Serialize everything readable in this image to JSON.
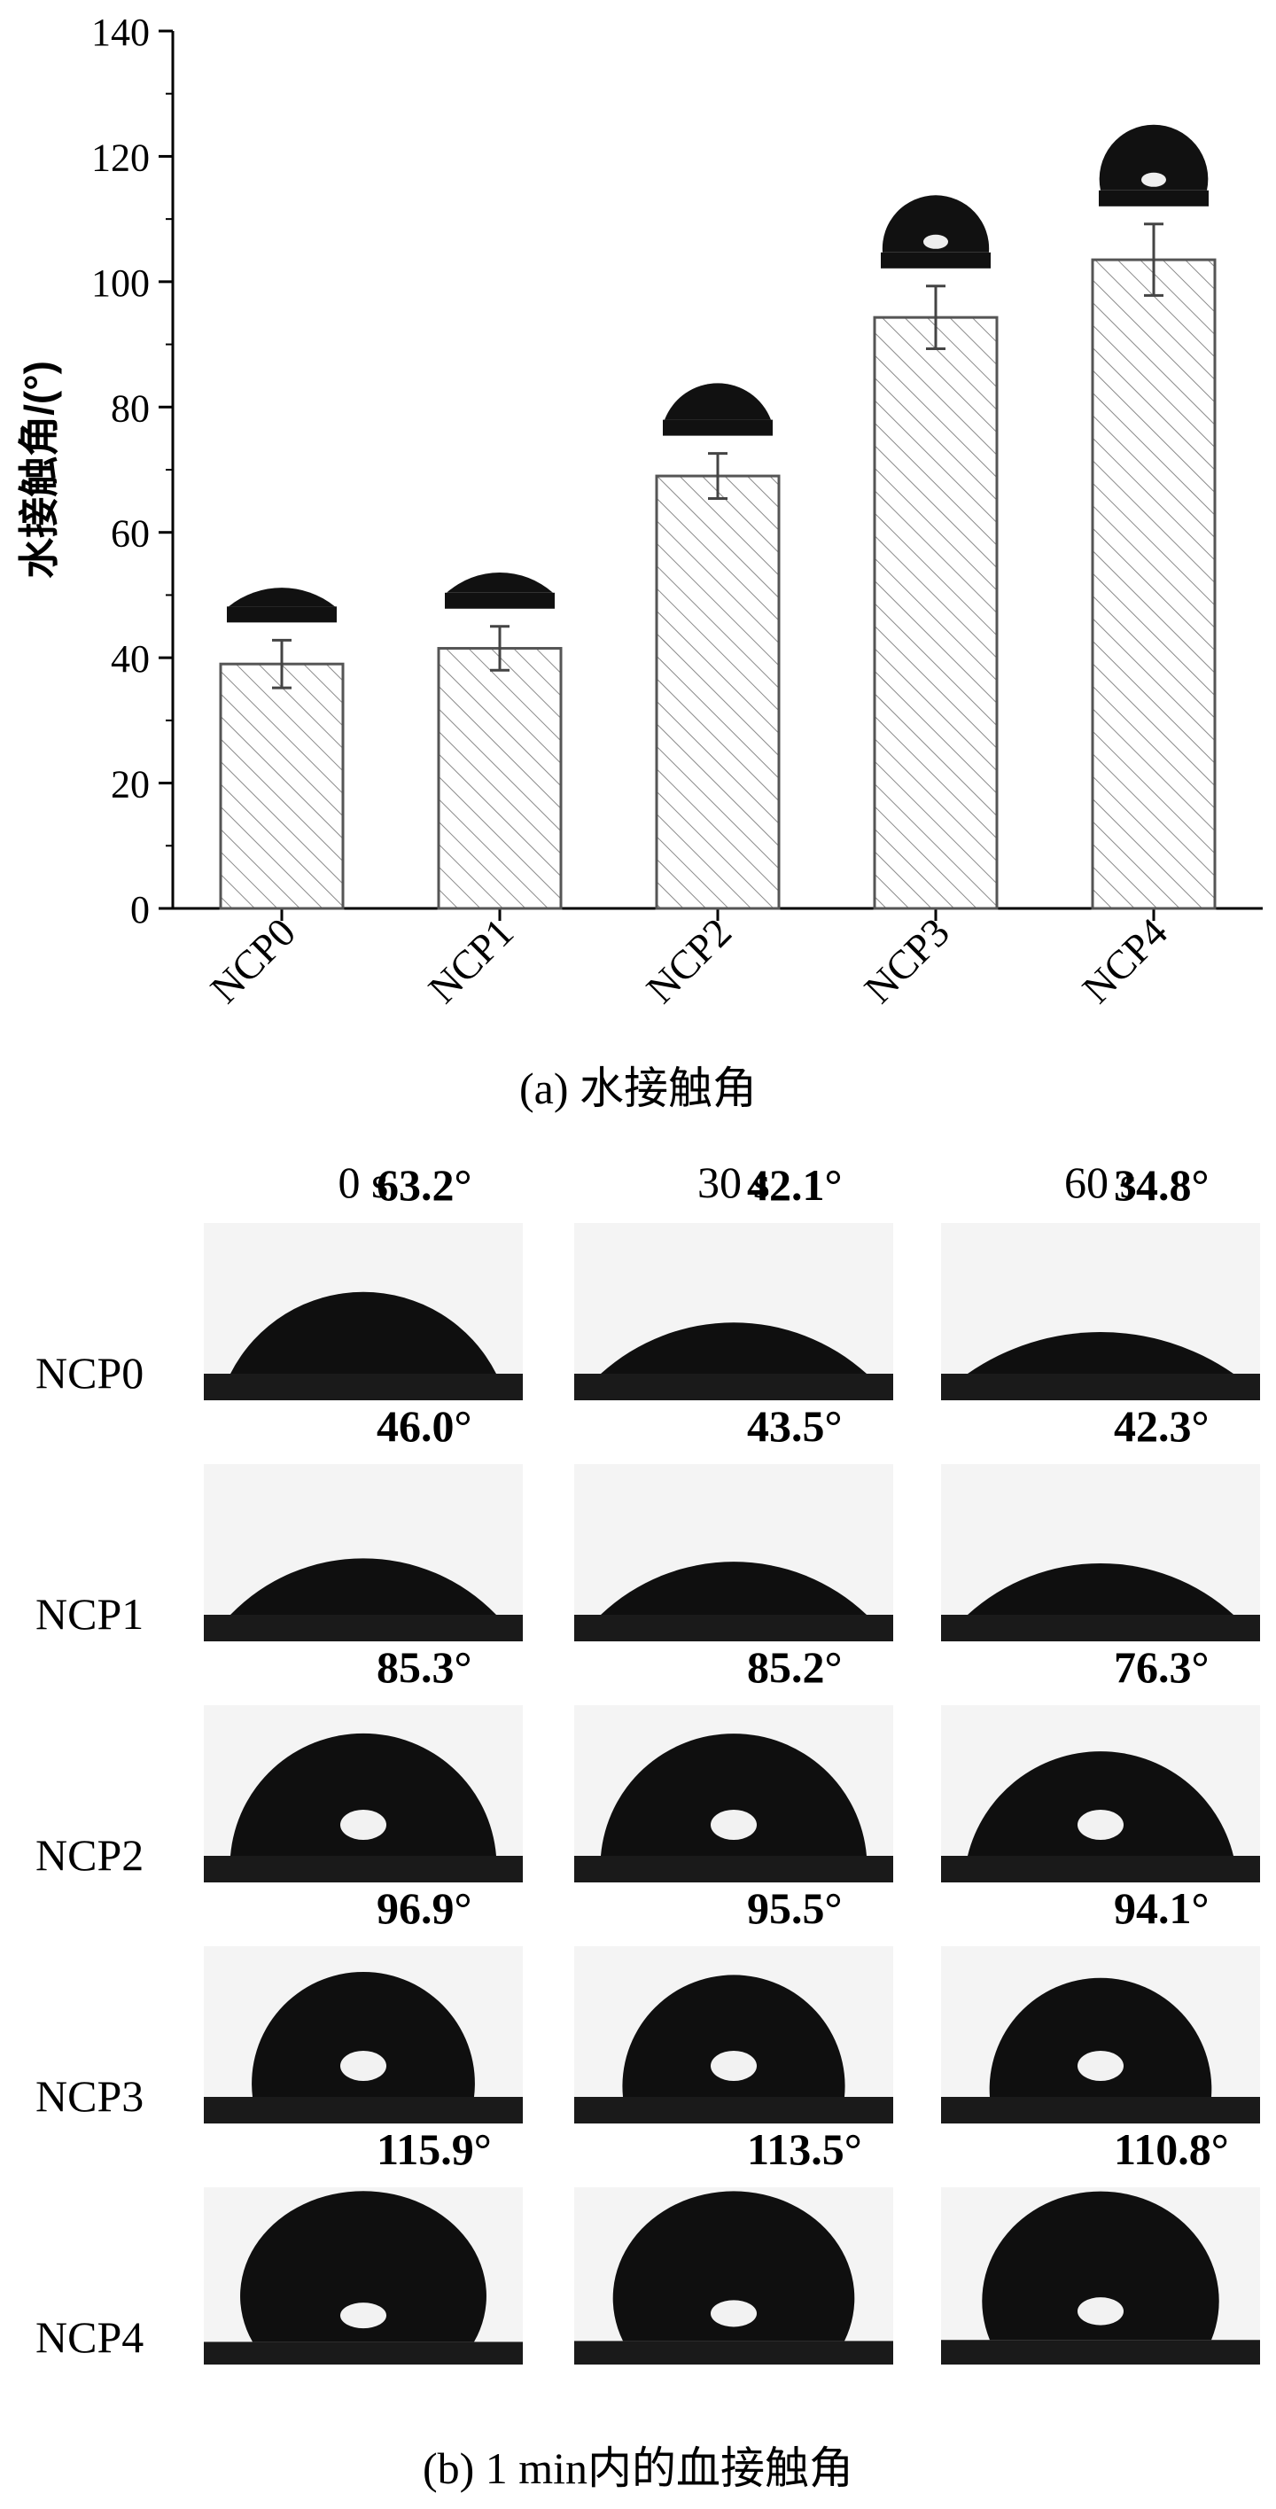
{
  "chart_data": {
    "type": "bar",
    "ylabel": "水接触角/(°)",
    "xlabel": "",
    "categories": [
      "NCP0",
      "NCP1",
      "NCP2",
      "NCP3",
      "NCP4"
    ],
    "values": [
      39,
      41.5,
      69,
      94.3,
      103.5
    ],
    "errors": [
      3.8,
      3.5,
      3.6,
      5,
      5.7
    ],
    "ylim": [
      0,
      140
    ],
    "yticks": [
      0,
      20,
      40,
      60,
      80,
      100,
      120,
      140
    ],
    "bar_pattern": "diagonal-hatch",
    "grid": false
  },
  "caption_a": "(a) 水接触角",
  "caption_b": "(b) 1 min内的血接触角",
  "panel_b": {
    "columns": [
      "0 s",
      "30 s",
      "60 s"
    ],
    "rows": [
      {
        "label": "NCP0",
        "angles": [
          "63.2°",
          "42.1°",
          "34.8°"
        ],
        "values": [
          63.2,
          42.1,
          34.8
        ]
      },
      {
        "label": "NCP1",
        "angles": [
          "46.0°",
          "43.5°",
          "42.3°"
        ],
        "values": [
          46.0,
          43.5,
          42.3
        ]
      },
      {
        "label": "NCP2",
        "angles": [
          "85.3°",
          "85.2°",
          "76.3°"
        ],
        "values": [
          85.3,
          85.2,
          76.3
        ]
      },
      {
        "label": "NCP3",
        "angles": [
          "96.9°",
          "95.5°",
          "94.1°"
        ],
        "values": [
          96.9,
          95.5,
          94.1
        ]
      },
      {
        "label": "NCP4",
        "angles": [
          "115.9°",
          "113.5°",
          "110.8°"
        ],
        "values": [
          115.9,
          113.5,
          110.8
        ]
      }
    ]
  },
  "colors": {
    "bar_fill": "#ffffff",
    "bar_stroke": "#555555",
    "hatch": "#888888",
    "drop": "#111111"
  }
}
